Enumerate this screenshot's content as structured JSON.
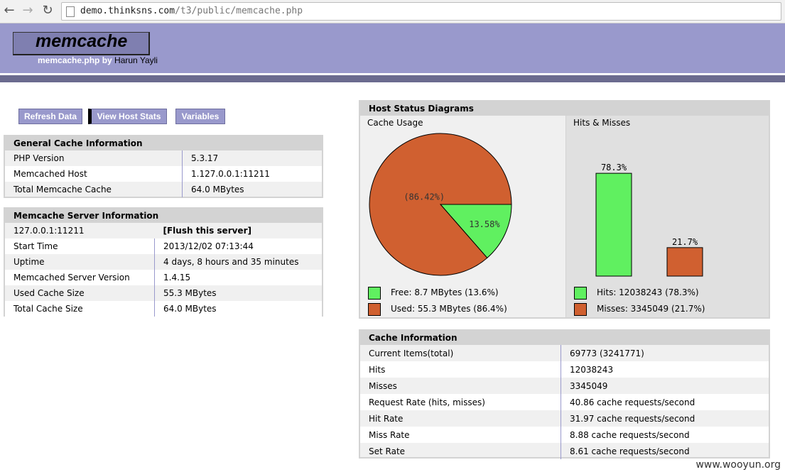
{
  "browser": {
    "url_domain": "demo.thinksns.com",
    "url_path": "/t3/public/memcache.php"
  },
  "header": {
    "logo_text": "memcache",
    "byline_prefix": "memcache.php by",
    "byline_author": "Harun Yayli"
  },
  "menu": {
    "refresh": "Refresh Data",
    "host_stats": "View Host Stats",
    "variables": "Variables"
  },
  "general": {
    "title": "General Cache Information",
    "rows": [
      {
        "k": "PHP Version",
        "v": "5.3.17"
      },
      {
        "k": "Memcached Host",
        "v": "1.127.0.0.1:11211"
      },
      {
        "k": "Total Memcache Cache",
        "v": "64.0 MBytes"
      }
    ]
  },
  "server": {
    "title": "Memcache Server Information",
    "host": "127.0.0.1:11211",
    "flush": "[Flush this server]",
    "rows": [
      {
        "k": "Start Time",
        "v": "2013/12/02 07:13:44"
      },
      {
        "k": "Uptime",
        "v": "4 days, 8 hours and 35 minutes"
      },
      {
        "k": "Memcached Server Version",
        "v": "1.4.15"
      },
      {
        "k": "Used Cache Size",
        "v": "55.3 MBytes"
      },
      {
        "k": "Total Cache Size",
        "v": "64.0 MBytes"
      }
    ]
  },
  "diagrams": {
    "title": "Host Status Diagrams",
    "usage_title": "Cache Usage",
    "hits_title": "Hits & Misses",
    "free_legend": "Free: 8.7 MBytes (13.6%)",
    "used_legend": "Used: 55.3 MBytes (86.4%)",
    "hits_legend": "Hits: 12038243 (78.3%)",
    "misses_legend": "Misses: 3345049 (21.7%)",
    "colors": {
      "green": "#60f060",
      "orange": "#d06030"
    }
  },
  "chart_data": [
    {
      "type": "pie",
      "title": "Cache Usage",
      "slices": [
        {
          "label": "13.58%",
          "value": 13.58,
          "color": "#60f060"
        },
        {
          "label": "(86.42%)",
          "value": 86.42,
          "color": "#d06030"
        }
      ]
    },
    {
      "type": "bar",
      "title": "Hits & Misses",
      "categories": [
        "Hits",
        "Misses"
      ],
      "values": [
        78.3,
        21.7
      ],
      "labels": [
        "78.3%",
        "21.7%"
      ],
      "colors": [
        "#60f060",
        "#d06030"
      ]
    }
  ],
  "cache": {
    "title": "Cache Information",
    "rows": [
      {
        "k": "Current Items(total)",
        "v": "69773 (3241771)"
      },
      {
        "k": "Hits",
        "v": "12038243"
      },
      {
        "k": "Misses",
        "v": "3345049"
      },
      {
        "k": "Request Rate (hits, misses)",
        "v": "40.86 cache requests/second"
      },
      {
        "k": "Hit Rate",
        "v": "31.97 cache requests/second"
      },
      {
        "k": "Miss Rate",
        "v": "8.88 cache requests/second"
      },
      {
        "k": "Set Rate",
        "v": "8.61 cache requests/second"
      }
    ]
  },
  "watermark": "www.wooyun.org"
}
